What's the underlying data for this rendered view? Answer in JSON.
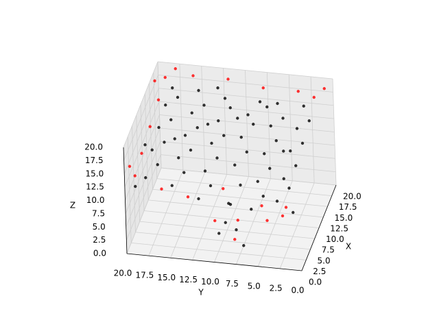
{
  "chart_data": {
    "type": "scatter3d",
    "xlabel": "X",
    "ylabel": "Y",
    "zlabel": "Z",
    "xlim": [
      0,
      20
    ],
    "ylim": [
      0,
      20
    ],
    "zlim": [
      0,
      20
    ],
    "xticks": [
      {
        "value": 0,
        "label": "0.0"
      },
      {
        "value": 2.5,
        "label": "2.5"
      },
      {
        "value": 5,
        "label": "5.0"
      },
      {
        "value": 7.5,
        "label": "7.5"
      },
      {
        "value": 10,
        "label": "10.0"
      },
      {
        "value": 12.5,
        "label": "12.5"
      },
      {
        "value": 15,
        "label": "15.0"
      },
      {
        "value": 17.5,
        "label": "17.5"
      },
      {
        "value": 20,
        "label": "20.0"
      }
    ],
    "yticks": [
      {
        "value": 0,
        "label": "0.0"
      },
      {
        "value": 2.5,
        "label": "2.5"
      },
      {
        "value": 5,
        "label": "5.0"
      },
      {
        "value": 7.5,
        "label": "7.5"
      },
      {
        "value": 10,
        "label": "10.0"
      },
      {
        "value": 12.5,
        "label": "12.5"
      },
      {
        "value": 15,
        "label": "15.0"
      },
      {
        "value": 17.5,
        "label": "17.5"
      },
      {
        "value": 20,
        "label": "20.0"
      }
    ],
    "zticks": [
      {
        "value": 0,
        "label": "0.0"
      },
      {
        "value": 2.5,
        "label": "2.5"
      },
      {
        "value": 5,
        "label": "5.0"
      },
      {
        "value": 7.5,
        "label": "7.5"
      },
      {
        "value": 10,
        "label": "10.0"
      },
      {
        "value": 12.5,
        "label": "12.5"
      },
      {
        "value": 15,
        "label": "15.0"
      },
      {
        "value": 17.5,
        "label": "17.5"
      },
      {
        "value": 20,
        "label": "20.0"
      }
    ],
    "grid": true,
    "series": [
      {
        "color": "#ff0000",
        "x": [
          1,
          3,
          5,
          20,
          20,
          19,
          20,
          20,
          20,
          19,
          1,
          1,
          1,
          2,
          4,
          1,
          2,
          10,
          15,
          6,
          3,
          0,
          20,
          18
        ],
        "y": [
          19,
          20,
          19,
          1,
          4,
          2,
          8,
          12,
          16,
          19,
          16,
          13,
          10,
          8,
          8,
          4,
          2,
          19,
          19,
          10,
          5,
          2,
          18,
          20
        ],
        "z": [
          14,
          14,
          15,
          18,
          17,
          17,
          17,
          18,
          18,
          18,
          12,
          11,
          7,
          3,
          5,
          8,
          10,
          16,
          17,
          9,
          9,
          10,
          19,
          18
        ]
      },
      {
        "color": "#000000",
        "x": [
          2,
          4,
          6,
          8,
          10,
          12,
          14,
          16,
          18,
          2,
          4,
          6,
          8,
          10,
          12,
          14,
          16,
          18,
          2,
          4,
          6,
          8,
          10,
          12,
          14,
          16,
          18,
          2,
          3,
          4,
          6,
          8,
          10,
          12,
          14,
          16,
          18,
          2,
          4,
          6,
          8,
          10,
          12,
          14,
          16,
          18,
          2,
          4,
          6,
          8,
          10,
          12,
          14,
          16,
          18,
          3,
          2,
          5,
          9,
          11,
          13,
          15,
          17,
          19,
          1,
          7,
          1
        ],
        "y": [
          18,
          17,
          18,
          17,
          18,
          17,
          18,
          17,
          18,
          15,
          14,
          15,
          14,
          15,
          14,
          15,
          14,
          15,
          12,
          11,
          12,
          11,
          12,
          11,
          12,
          11,
          12,
          9,
          8,
          9,
          8,
          9,
          8,
          9,
          8,
          9,
          8,
          6,
          5,
          6,
          5,
          6,
          5,
          6,
          5,
          6,
          3,
          2,
          3,
          2,
          3,
          2,
          3,
          2,
          3,
          10,
          7,
          9,
          16,
          4,
          13,
          10,
          7,
          13,
          1,
          19,
          19
        ],
        "z": [
          13,
          14,
          15,
          15,
          16,
          16,
          17,
          17,
          17,
          12,
          13,
          14,
          14,
          15,
          15,
          16,
          16,
          17,
          10,
          11,
          12,
          13,
          14,
          14,
          15,
          16,
          16,
          6,
          4,
          8,
          10,
          12,
          13,
          14,
          15,
          15,
          16,
          9,
          10,
          11,
          12,
          13,
          14,
          15,
          15,
          16,
          11,
          12,
          12,
          13,
          14,
          14,
          15,
          15,
          16,
          3,
          2,
          7,
          15,
          13,
          15,
          15,
          16,
          17,
          10,
          15,
          12
        ]
      }
    ]
  }
}
